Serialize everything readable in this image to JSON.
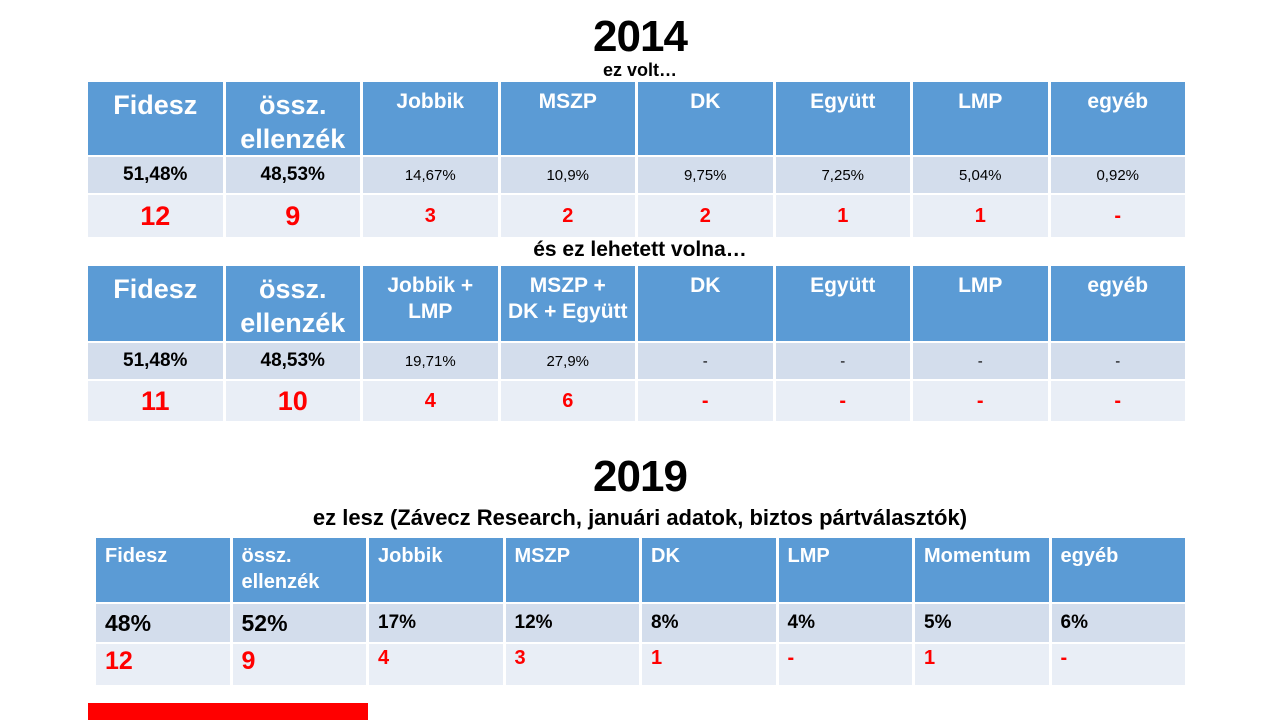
{
  "colors": {
    "header_blue": "#5b9bd5",
    "percent_row_bg": "#d3ddec",
    "seat_row_bg": "#e9eef6",
    "seat_red": "#ff0000",
    "header_text": "#ffffff",
    "body_text": "#000000",
    "bottom_bar_red": "#ff0000"
  },
  "y2014": {
    "title": "2014",
    "subtitle_actual": "ez volt…",
    "actual": {
      "columns": [
        "Fidesz",
        "össz.\nellenzék",
        "Jobbik",
        "MSZP",
        "DK",
        "Együtt",
        "LMP",
        "egyéb"
      ],
      "percentages": [
        "51,48%",
        "48,53%",
        "14,67%",
        "10,9%",
        "9,75%",
        "7,25%",
        "5,04%",
        "0,92%"
      ],
      "seats": [
        "12",
        "9",
        "3",
        "2",
        "2",
        "1",
        "1",
        "-"
      ]
    },
    "subtitle_hypothetical": "és ez lehetett volna…",
    "hypothetical": {
      "columns": [
        "Fidesz",
        "össz.\nellenzék",
        "Jobbik +\nLMP",
        "MSZP +\nDK + Együtt",
        "DK",
        "Együtt",
        "LMP",
        "egyéb"
      ],
      "percentages": [
        "51,48%",
        "48,53%",
        "19,71%",
        "27,9%",
        "-",
        "-",
        "-",
        "-"
      ],
      "seats": [
        "11",
        "10",
        "4",
        "6",
        "-",
        "-",
        "-",
        "-"
      ]
    }
  },
  "y2019": {
    "title": "2019",
    "subtitle": "ez lesz (Závecz Research, januári adatok, biztos pártválasztók)",
    "forecast": {
      "columns": [
        "Fidesz",
        "össz.\nellenzék",
        "Jobbik",
        "MSZP",
        "DK",
        "LMP",
        "Momentum",
        "egyéb"
      ],
      "percentages": [
        "48%",
        "52%",
        "17%",
        "12%",
        "8%",
        "4%",
        "5%",
        "6%"
      ],
      "seats": [
        "12",
        "9",
        "4",
        "3",
        "1",
        "-",
        "1",
        "-"
      ]
    }
  }
}
